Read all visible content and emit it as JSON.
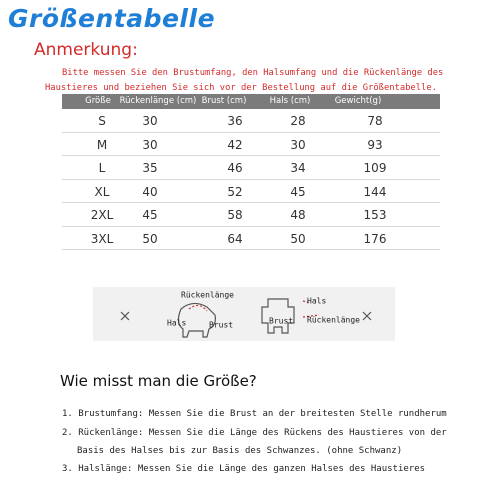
{
  "header": {
    "title": "Größentabelle",
    "note_label": "Anmerkung:",
    "note_lines": [
      "Bitte messen Sie den Brustumfang, den Halsumfang und die Rückenlänge des",
      "Haustieres und beziehen Sie sich vor der Bestellung auf die Größentabelle."
    ]
  },
  "table": {
    "columns": [
      "Größe",
      "Rückenlänge (cm)",
      "Brust (cm)",
      "Hals (cm)",
      "Gewicht(g)"
    ],
    "rows": [
      [
        "S",
        30,
        36,
        28,
        78
      ],
      [
        "M",
        30,
        42,
        30,
        93
      ],
      [
        "L",
        35,
        46,
        34,
        109
      ],
      [
        "XL",
        40,
        52,
        45,
        144
      ],
      [
        "2XL",
        45,
        58,
        48,
        153
      ],
      [
        "3XL",
        50,
        64,
        50,
        176
      ]
    ]
  },
  "diagram": {
    "labels": [
      "Rückenlänge",
      "Hals",
      "Brust",
      "Hals",
      "Brust",
      "Rückenlänge"
    ]
  },
  "guide": {
    "title": "Wie misst man die Größe?",
    "lines": [
      "1. Brustumfang: Messen Sie die Brust an der breitesten Stelle rundherum",
      "2. Rückenlänge: Messen Sie die Länge des Rückens des Haustieres von der",
      "Basis des Halses bis zur Basis des Schwanzes. (ohne Schwanz)",
      "3. Halslänge: Messen Sie die Länge des ganzen Halses des Haustieres"
    ]
  }
}
